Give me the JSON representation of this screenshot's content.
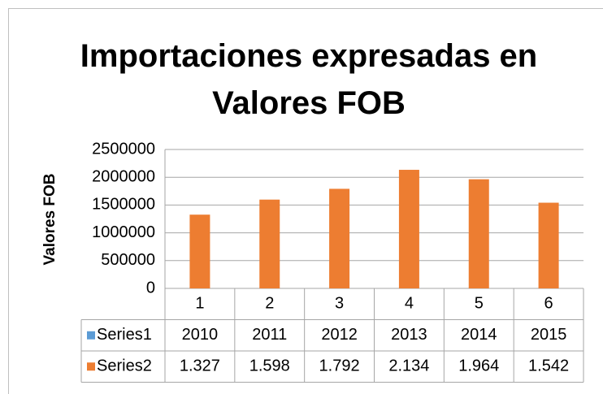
{
  "chart_data": {
    "type": "bar",
    "title": "Importaciones expresadas en Valores FOB",
    "y_label": "Valores FOB",
    "categories": [
      "1",
      "2",
      "3",
      "4",
      "5",
      "6"
    ],
    "series": [
      {
        "name": "Series1",
        "color": "#5b9bd5",
        "values": [
          2010,
          2011,
          2012,
          2013,
          2014,
          2015
        ]
      },
      {
        "name": "Series2",
        "color": "#ed7d31",
        "values": [
          1327000,
          1598000,
          1792000,
          2134000,
          1964000,
          1542000
        ],
        "value_labels": [
          "1.327",
          "1.598",
          "1.792",
          "2.134",
          "1.964",
          "1.542"
        ]
      }
    ],
    "ylim": [
      0,
      2500000
    ],
    "yticks": [
      0,
      500000,
      1000000,
      1500000,
      2000000,
      2500000
    ],
    "grid": true,
    "data_table": true
  }
}
